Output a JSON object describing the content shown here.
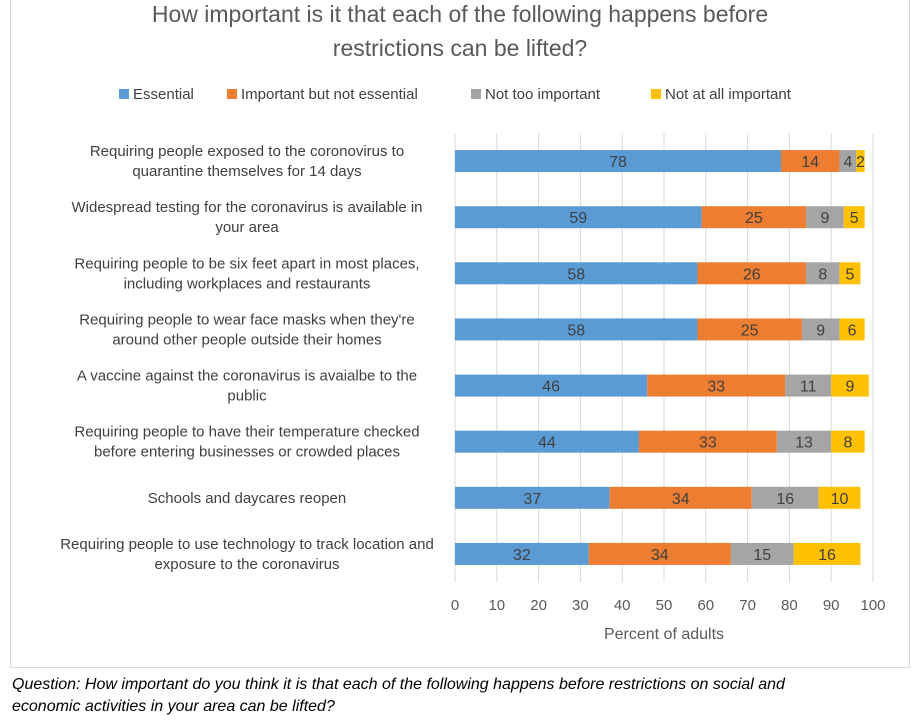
{
  "chart_data": {
    "type": "bar",
    "orientation": "horizontal",
    "stacked": true,
    "title_lines": [
      "How important is it that each of the following happens before",
      "restrictions can be lifted?"
    ],
    "xlabel": "Percent of adults",
    "ylabel": "",
    "xlim": [
      0,
      100
    ],
    "x_ticks": [
      "0",
      "10",
      "20",
      "30",
      "40",
      "50",
      "60",
      "70",
      "80",
      "90",
      "100"
    ],
    "legend_position": "top",
    "gridlines": "vertical",
    "categories": [
      [
        "Requiring people exposed to the coronovirus to",
        "quarantine themselves for 14 days"
      ],
      [
        "Widespread testing for the coronavirus is available in",
        "your area"
      ],
      [
        "Requiring people to be six feet apart in most places,",
        "including workplaces and restaurants"
      ],
      [
        "Requiring people to wear face masks when they're",
        "around other people outside their homes"
      ],
      [
        "A vaccine against the coronavirus is avaialbe to the",
        "public"
      ],
      [
        "Requiring people to have their temperature checked",
        "before entering businesses or crowded places"
      ],
      [
        "Schools and daycares reopen"
      ],
      [
        "Requiring people to use technology to track location and",
        "exposure to the coronavirus"
      ]
    ],
    "series": [
      {
        "name": "Essential",
        "color": "#5B9BD5",
        "values": [
          78,
          59,
          58,
          58,
          46,
          44,
          37,
          32
        ]
      },
      {
        "name": "Important but not essential",
        "color": "#ED7D31",
        "values": [
          14,
          25,
          26,
          25,
          33,
          33,
          34,
          34
        ]
      },
      {
        "name": "Not too important",
        "color": "#A5A5A5",
        "values": [
          4,
          9,
          8,
          9,
          11,
          13,
          16,
          15
        ]
      },
      {
        "name": "Not at all important",
        "color": "#FFC000",
        "values": [
          2,
          5,
          5,
          6,
          9,
          8,
          10,
          16
        ]
      }
    ]
  },
  "footnote": {
    "lines": [
      "Question: How important do you think it is that each of the following happens before restrictions on social and",
      "economic activities in your area can be lifted?"
    ]
  }
}
